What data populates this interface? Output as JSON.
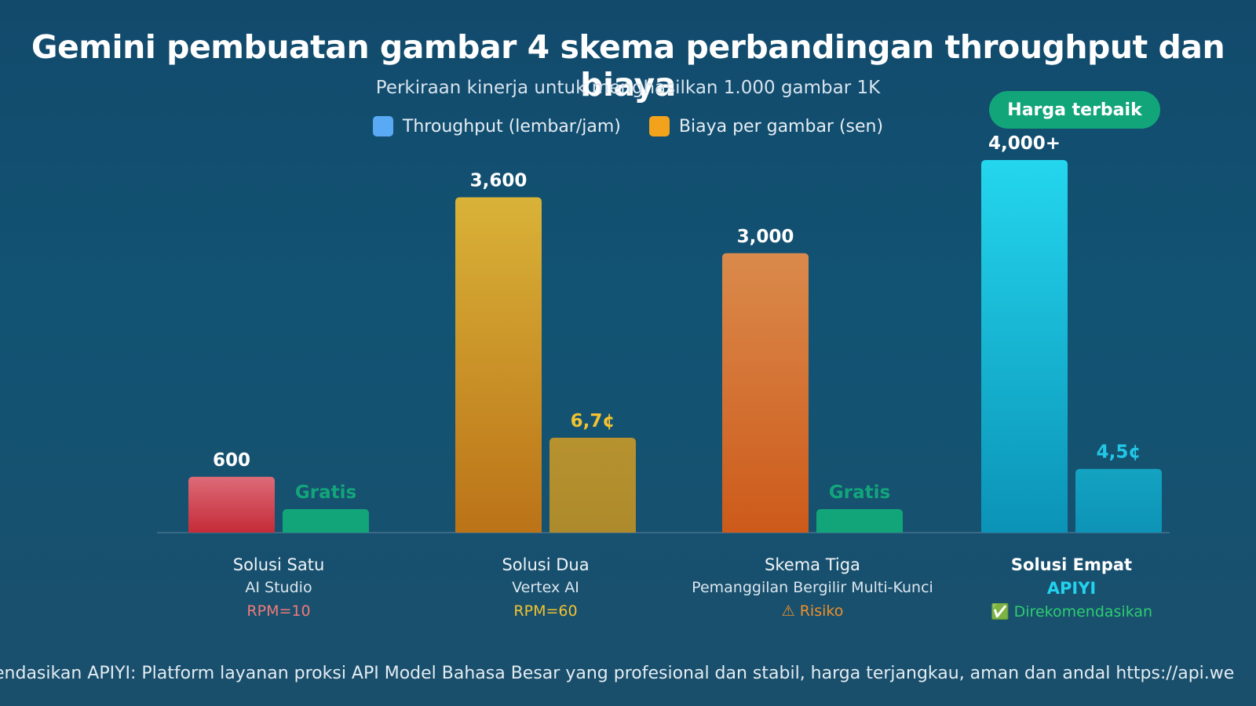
{
  "title": "Gemini pembuatan gambar 4 skema perbandingan throughput dan biaya",
  "subtitle": "Perkiraan kinerja untuk menghasilkan 1.000 gambar 1K",
  "legend": {
    "throughput": "Throughput (lembar/jam)",
    "cost": "Biaya per gambar (sen)"
  },
  "badge": "Harga terbaik",
  "footer": "endasikan APIYI: Platform layanan proksi API Model Bahasa Besar yang profesional dan stabil, harga terjangkau, aman dan andal https://api.we",
  "colors": {
    "legend_throughput": "#5aa9f5",
    "legend_cost": "#f3a21b",
    "free": "#12a57a",
    "apiyi": "#22d3ee"
  },
  "chart_data": {
    "type": "bar",
    "categories": [
      "Solusi Satu",
      "Solusi Dua",
      "Skema Tiga",
      "Solusi Empat"
    ],
    "series": [
      {
        "name": "Throughput (lembar/jam)",
        "values": [
          600,
          3600,
          3000,
          4000
        ],
        "labels": [
          "600",
          "3,600",
          "3,000",
          "4,000+"
        ]
      },
      {
        "name": "Biaya per gambar (sen)",
        "values": [
          0,
          6.7,
          0,
          4.5
        ],
        "labels": [
          "Gratis",
          "6,7¢",
          "Gratis",
          "4,5¢"
        ]
      }
    ],
    "ylim": [
      0,
      4300
    ]
  },
  "categories_info": [
    {
      "name": "Solusi Satu",
      "platform": "AI Studio",
      "note": "RPM=10",
      "note_color": "#f07a7a",
      "platform_color": "#dbe6ee"
    },
    {
      "name": "Solusi Dua",
      "platform": "Vertex AI",
      "note": "RPM=60",
      "note_color": "#f2c230",
      "platform_color": "#dbe6ee"
    },
    {
      "name": "Skema Tiga",
      "platform": "Pemanggilan Bergilir Multi-Kunci",
      "note": "⚠ Risiko",
      "note_color": "#f0902a",
      "platform_color": "#dbe6ee"
    },
    {
      "name": "Solusi Empat",
      "platform": "APIYI",
      "note": "✅ Direkomendasikan",
      "note_color": "#2ecc71",
      "platform_color": "#22d3ee"
    }
  ]
}
